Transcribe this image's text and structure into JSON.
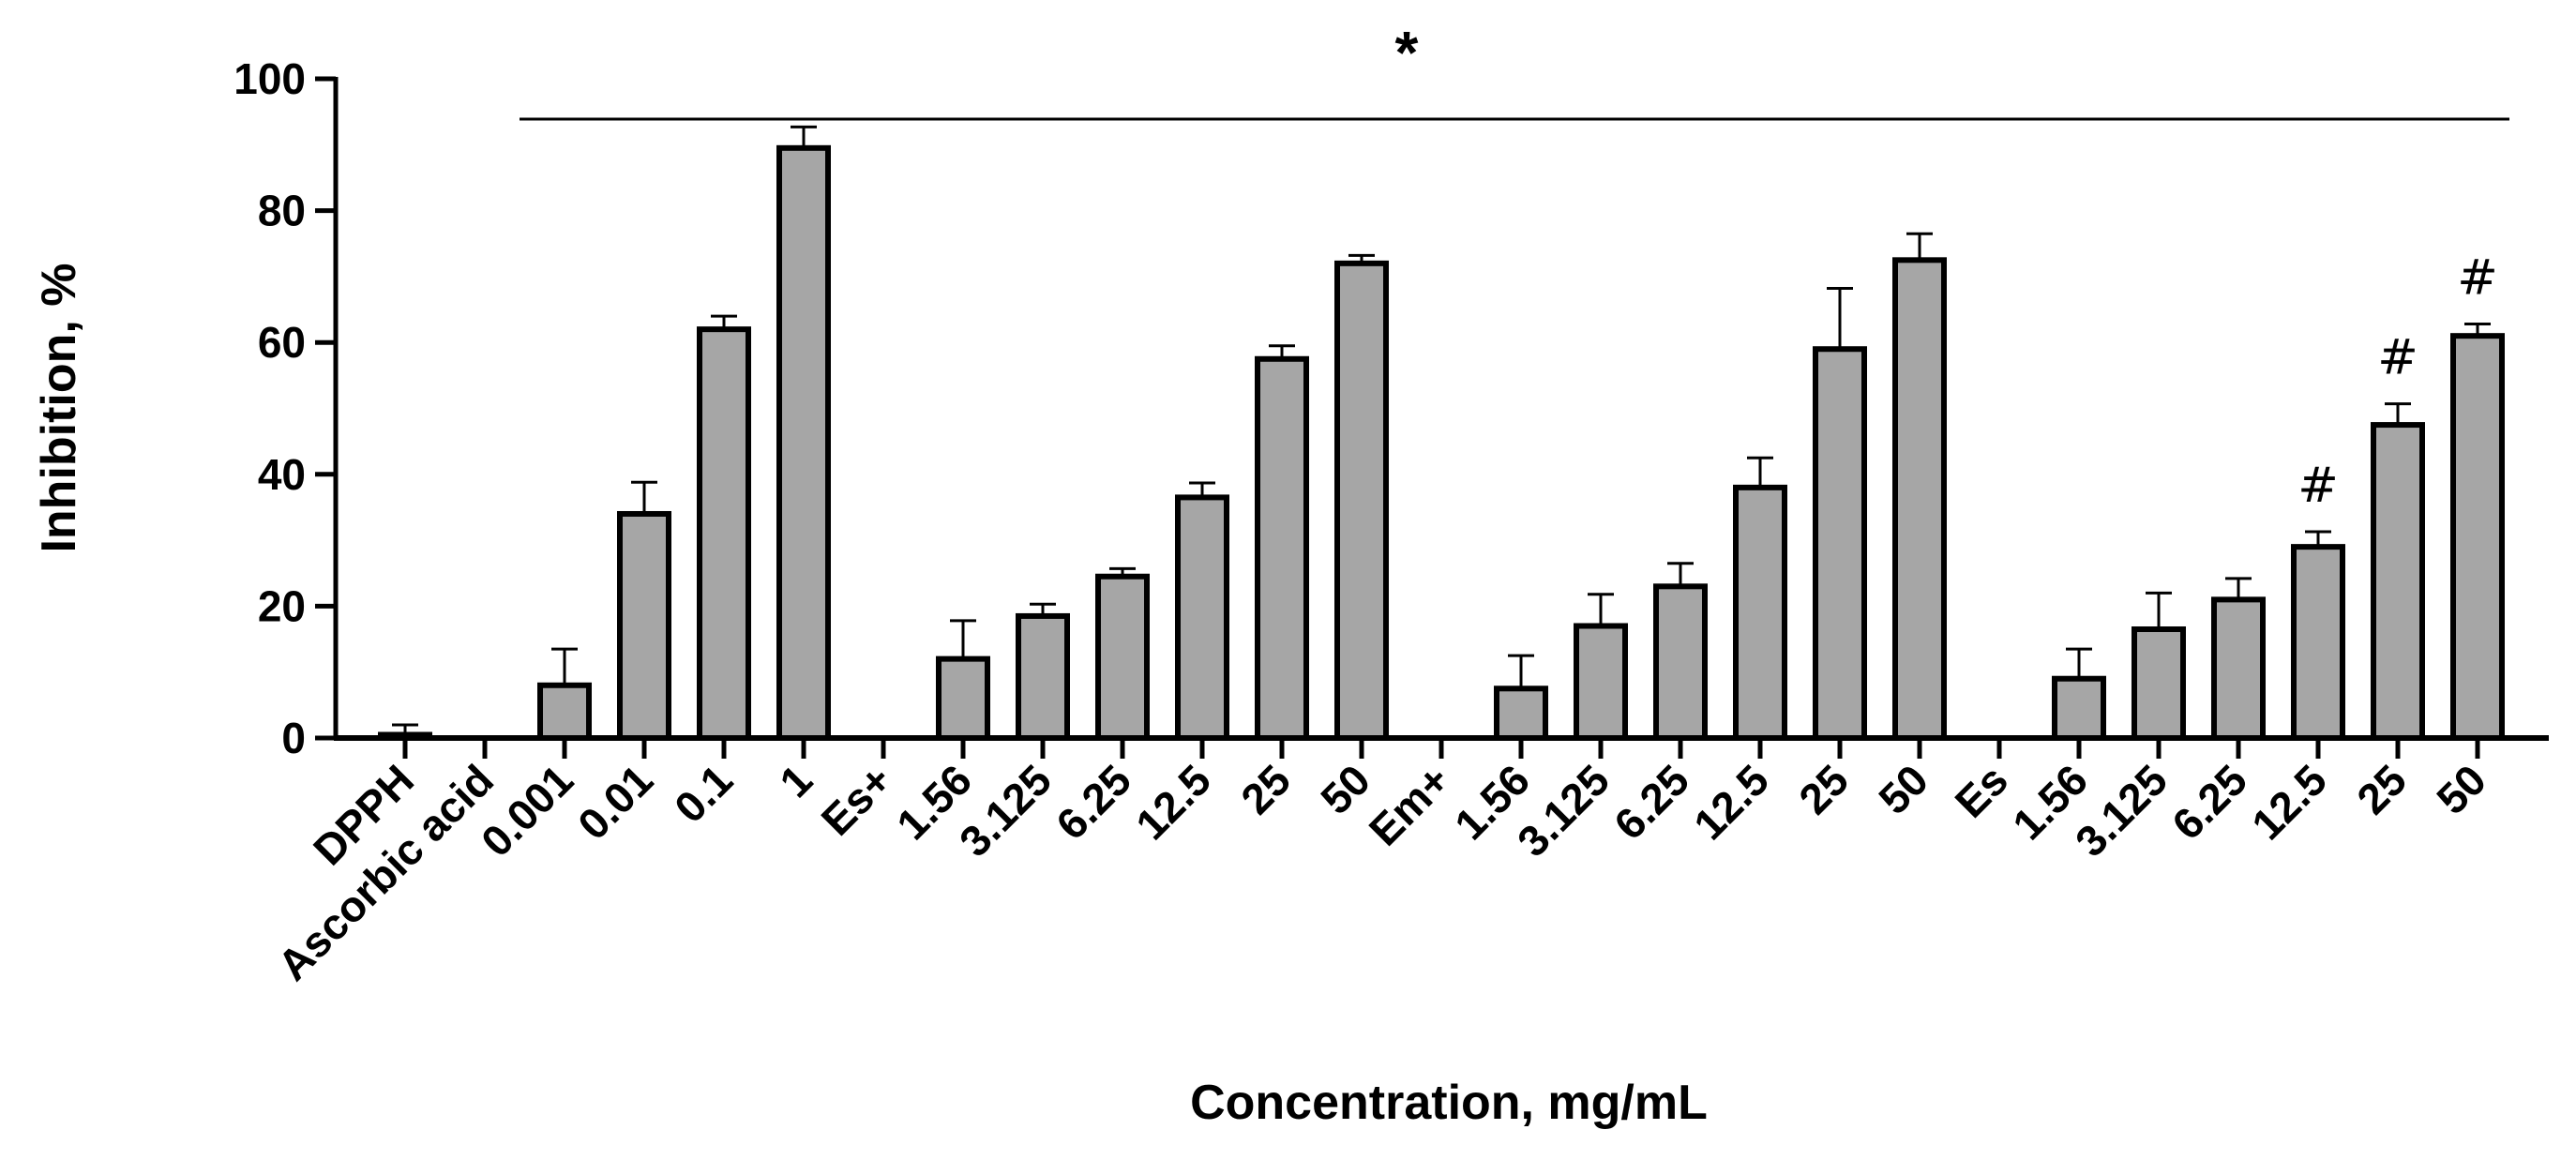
{
  "chart_data": {
    "type": "bar",
    "title": "",
    "xlabel": "Concentration, mg/mL",
    "ylabel": "Inhibition, %",
    "ylim": [
      0,
      100
    ],
    "yticks": [
      0,
      20,
      40,
      60,
      80,
      100
    ],
    "grid": false,
    "bar_color": "#a6a6a6",
    "edge_color": "#000000",
    "categories": [
      "DPPH",
      "Ascorbic acid",
      "0.001",
      "0.01",
      "0.1",
      "1",
      "Es+",
      "1.56",
      "3.125",
      "6.25",
      "12.5",
      "25",
      "50",
      "Em+",
      "1.56",
      "3.125",
      "6.25",
      "12.5",
      "25",
      "50",
      "Es",
      "1.56",
      "3.125",
      "6.25",
      "12.5",
      "25",
      "50"
    ],
    "values": [
      0.5,
      0,
      8,
      34,
      62,
      89.5,
      0,
      12,
      18.5,
      24.5,
      36.5,
      57.5,
      72,
      0,
      7.5,
      17,
      23,
      38,
      59,
      72.5,
      0,
      9,
      16.5,
      21,
      29,
      47.5,
      61
    ],
    "errors": [
      1.5,
      0,
      5.5,
      4.8,
      2,
      3.2,
      0,
      5.8,
      1.8,
      1.2,
      2.2,
      2,
      1.2,
      0,
      5,
      4.8,
      3.5,
      4.5,
      9.2,
      4,
      0,
      4.5,
      5.5,
      3.2,
      2.3,
      3.2,
      1.8
    ],
    "annotations": {
      "significance_star": "*",
      "significance_span": [
        "0.001",
        "50 (Es)"
      ],
      "hash_marker": "#",
      "hash_indices": [
        24,
        25,
        26
      ]
    }
  }
}
